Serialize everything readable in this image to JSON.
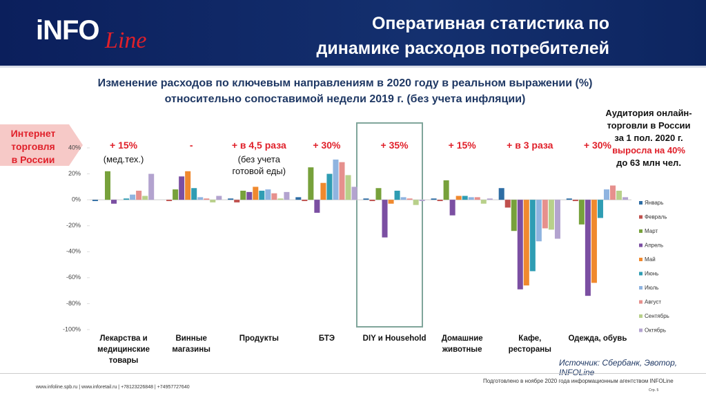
{
  "header": {
    "logo": [
      "iNFO",
      "Line"
    ],
    "title": [
      "Оперативная статистика по",
      "динамике расходов потребителей"
    ]
  },
  "sidebar": {
    "lines": [
      "Интернет",
      "торговля",
      "в России"
    ]
  },
  "right_note": {
    "lines": [
      "Аудитория онлайн-",
      "торговли в России",
      "за 1 пол. 2020 г."
    ],
    "highlight": "выросла на 40%",
    "tail": "до 63 млн чел."
  },
  "chart_data": {
    "type": "bar",
    "title": [
      "Изменение расходов по ключевым направлениям в 2020 году в реальном выражении (%)",
      "относительно сопоставимой недели 2019 г. (без учета инфляции)"
    ],
    "categories": [
      "Лекарства и медицинские товары",
      "Винные магазины",
      "Продукты",
      "БТЭ",
      "DIY и Household",
      "Домашние животные",
      "Кафе, рестораны",
      "Одежда, обувь"
    ],
    "annotations": [
      {
        "text": "+ 15%",
        "note": "(мед.тех.)"
      },
      {
        "text": "-"
      },
      {
        "text": "+ в 4,5 раза",
        "note": "(без учета готовой еды)"
      },
      {
        "text": "+ 30%"
      },
      {
        "text": "+ 35%"
      },
      {
        "text": "+ 15%"
      },
      {
        "text": "+ в 3 раза"
      },
      {
        "text": "+ 30%"
      }
    ],
    "series": [
      {
        "name": "Январь",
        "color": "#2e6da4",
        "values": [
          -1,
          0,
          1,
          2,
          1,
          1,
          9,
          1
        ]
      },
      {
        "name": "Февраль",
        "color": "#c0504d",
        "values": [
          0,
          -1,
          -2,
          -1,
          -1,
          -1,
          -6,
          -1
        ]
      },
      {
        "name": "Март",
        "color": "#77a13b",
        "values": [
          22,
          8,
          7,
          25,
          9,
          15,
          -24,
          -19
        ]
      },
      {
        "name": "Апрель",
        "color": "#7b4fa2",
        "values": [
          -3,
          18,
          6,
          -10,
          -29,
          -12,
          -69,
          -74
        ]
      },
      {
        "name": "Май",
        "color": "#f0892e",
        "values": [
          0,
          22,
          10,
          13,
          -3,
          3,
          -66,
          -64
        ]
      },
      {
        "name": "Июнь",
        "color": "#2f9db3",
        "values": [
          1,
          9,
          7,
          20,
          7,
          3,
          -55,
          -14
        ]
      },
      {
        "name": "Июль",
        "color": "#8fb4e0",
        "values": [
          4,
          2,
          8,
          31,
          2,
          2,
          -32,
          8
        ]
      },
      {
        "name": "Август",
        "color": "#e6908d",
        "values": [
          7,
          1,
          5,
          29,
          1,
          2,
          -22,
          11
        ]
      },
      {
        "name": "Сентябрь",
        "color": "#b8d08a",
        "values": [
          3,
          -2,
          1,
          19,
          -4,
          -3,
          -23,
          7
        ]
      },
      {
        "name": "Октябрь",
        "color": "#b3a3cf",
        "values": [
          20,
          3,
          6,
          10,
          -1,
          1,
          -30,
          2
        ]
      }
    ],
    "ylim": [
      -100,
      40
    ],
    "yticks": [
      {
        "value": 40,
        "label": "40%"
      },
      {
        "value": 20,
        "label": "20%"
      },
      {
        "value": 0,
        "label": "0%"
      },
      {
        "value": -20,
        "label": "-20%"
      },
      {
        "value": -40,
        "label": "-40%"
      },
      {
        "value": -60,
        "label": "-60%"
      },
      {
        "value": -80,
        "label": "-80%"
      },
      {
        "value": -100,
        "label": "-100%"
      }
    ],
    "legend": "right",
    "source": "Источник: Сбербанк, Эвотор, INFOLine"
  },
  "footer": {
    "contacts": "www.infoline.spb.ru | www.inforetail.ru | +78123226848 | +74957727640",
    "prepared": "Подготовлено в ноябре 2020 года информационным агентством INFOLine",
    "page": "Стр. 5"
  }
}
